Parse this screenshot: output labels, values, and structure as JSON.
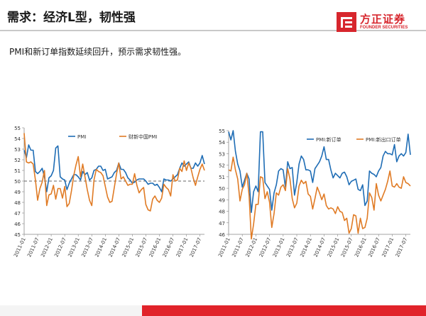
{
  "header": {
    "title": "需求：经济L型，韧性强",
    "logo_cn": "方正证券",
    "logo_en": "FOUNDER SECURITIES"
  },
  "subtitle": "PMI和新订单指数延续回升，预示需求韧性强。",
  "colors": {
    "blue": "#1f6db5",
    "orange": "#e07b25",
    "brand_red": "#d7262d",
    "grid_dash": "#666666"
  },
  "chart_data": [
    {
      "type": "line",
      "title": "",
      "ylim": [
        45,
        55
      ],
      "yticks": [
        45,
        46,
        47,
        48,
        49,
        50,
        51,
        52,
        53,
        54,
        55
      ],
      "x_tick_labels": [
        "2011-01",
        "2011-07",
        "2012-01",
        "2012-07",
        "2013-01",
        "2013-07",
        "2014-01",
        "2014-07",
        "2015-01",
        "2015-07",
        "2016-01",
        "2016-07",
        "2017-01",
        "2017-07"
      ],
      "reference_line": 50,
      "legend_position": "top",
      "series": [
        {
          "name": "PMI",
          "color": "#1f6db5",
          "values": [
            52.9,
            52.2,
            53.4,
            52.9,
            52.9,
            50.9,
            50.7,
            50.9,
            51.2,
            50.4,
            49.0,
            50.3,
            50.5,
            51.0,
            53.1,
            53.3,
            50.4,
            50.2,
            50.1,
            49.2,
            49.8,
            50.2,
            50.6,
            50.6,
            50.4,
            50.1,
            50.9,
            50.6,
            50.8,
            50.1,
            50.3,
            51.0,
            51.1,
            51.4,
            51.4,
            51.0,
            51.1,
            50.2,
            50.3,
            50.4,
            50.8,
            51.0,
            51.7,
            51.1,
            51.1,
            50.8,
            50.3,
            50.1,
            49.8,
            49.9,
            50.1,
            50.2,
            50.2,
            50.2,
            50.0,
            49.7,
            49.8,
            49.8,
            49.6,
            49.7,
            49.4,
            49.0,
            50.2,
            50.1,
            50.1,
            50.0,
            50.2,
            50.4,
            50.6,
            51.2,
            51.7,
            51.4,
            51.6,
            51.8,
            51.2,
            51.2,
            51.7,
            51.4,
            51.7,
            52.4,
            51.6
          ]
        },
        {
          "name": "财新中国PMI",
          "color": "#e07b25",
          "values": [
            54.5,
            51.8,
            51.7,
            51.8,
            51.6,
            50.1,
            48.2,
            49.3,
            49.9,
            51.0,
            47.7,
            48.7,
            48.8,
            49.6,
            48.3,
            49.3,
            49.3,
            48.4,
            49.5,
            47.6,
            47.9,
            49.1,
            50.5,
            51.5,
            52.3,
            50.4,
            51.6,
            50.4,
            49.2,
            48.2,
            47.7,
            50.1,
            51.1,
            50.9,
            50.8,
            50.5,
            49.5,
            48.5,
            48.0,
            48.1,
            49.4,
            50.7,
            51.7,
            50.2,
            50.4,
            50.0,
            49.6,
            49.7,
            49.7,
            50.7,
            49.6,
            48.9,
            49.2,
            49.4,
            47.8,
            47.3,
            47.2,
            48.3,
            48.6,
            48.2,
            48.0,
            48.4,
            49.7,
            49.4,
            49.2,
            48.6,
            50.6,
            50.0,
            50.1,
            51.2,
            50.9,
            51.9,
            51.0,
            51.7,
            51.2,
            50.3,
            49.6,
            50.4,
            51.1,
            51.6,
            51.0
          ]
        }
      ]
    },
    {
      "type": "line",
      "title": "",
      "ylim": [
        46,
        55
      ],
      "yticks": [
        46,
        47,
        48,
        49,
        50,
        51,
        52,
        53,
        54,
        55
      ],
      "x_tick_labels": [
        "2011-01",
        "2011-07",
        "2012-01",
        "2012-07",
        "2013-01",
        "2013-07",
        "2014-01",
        "2014-07",
        "2015-01",
        "2015-07",
        "2016-01",
        "2016-07",
        "2017-01",
        "2017-07"
      ],
      "legend_position": "top",
      "series": [
        {
          "name": "PMI:新订单",
          "color": "#1f6db5",
          "values": [
            54.9,
            54.2,
            55.0,
            53.2,
            52.1,
            51.5,
            50.1,
            50.7,
            51.3,
            50.8,
            47.9,
            49.7,
            50.2,
            49.7,
            54.9,
            54.9,
            50.5,
            50.2,
            49.9,
            48.1,
            49.6,
            50.3,
            51.5,
            51.7,
            51.6,
            50.1,
            52.3,
            51.7,
            51.8,
            49.4,
            50.5,
            52.1,
            52.8,
            52.5,
            51.6,
            51.6,
            51.5,
            50.5,
            51.7,
            52.0,
            52.3,
            52.8,
            53.6,
            52.5,
            52.5,
            51.6,
            50.9,
            51.3,
            51.1,
            50.9,
            51.3,
            51.4,
            51.0,
            50.3,
            50.6,
            50.7,
            50.8,
            49.9,
            49.8,
            50.3,
            48.5,
            48.9,
            51.5,
            51.3,
            51.2,
            51.0,
            51.5,
            51.8,
            52.8,
            53.2,
            53.0,
            53.0,
            52.9,
            53.8,
            52.3,
            52.8,
            53.0,
            52.8,
            53.1,
            54.7,
            52.9
          ]
        },
        {
          "name": "PMI:新出口订单",
          "color": "#e07b25",
          "values": [
            51.6,
            51.5,
            52.7,
            51.6,
            50.8,
            48.9,
            49.9,
            50.3,
            51.3,
            49.4,
            45.6,
            46.9,
            48.6,
            48.6,
            51.0,
            50.9,
            49.1,
            49.7,
            48.8,
            46.6,
            47.8,
            49.6,
            49.4,
            50.1,
            50.3,
            49.8,
            51.7,
            50.8,
            49.1,
            48.3,
            48.7,
            50.2,
            50.7,
            50.4,
            50.6,
            49.5,
            49.3,
            48.2,
            49.1,
            50.1,
            49.6,
            49.0,
            49.5,
            48.5,
            48.2,
            48.3,
            48.2,
            47.8,
            48.4,
            48.0,
            47.9,
            47.2,
            47.4,
            46.1,
            46.5,
            47.7,
            47.6,
            46.1,
            47.4,
            46.5,
            46.6,
            47.4,
            49.6,
            49.2,
            48.1,
            50.4,
            49.4,
            48.9,
            49.4,
            49.9,
            50.6,
            51.5,
            50.2,
            50.1,
            50.4,
            50.1,
            50.0,
            51.0,
            50.5,
            50.4,
            50.2
          ]
        }
      ]
    }
  ]
}
